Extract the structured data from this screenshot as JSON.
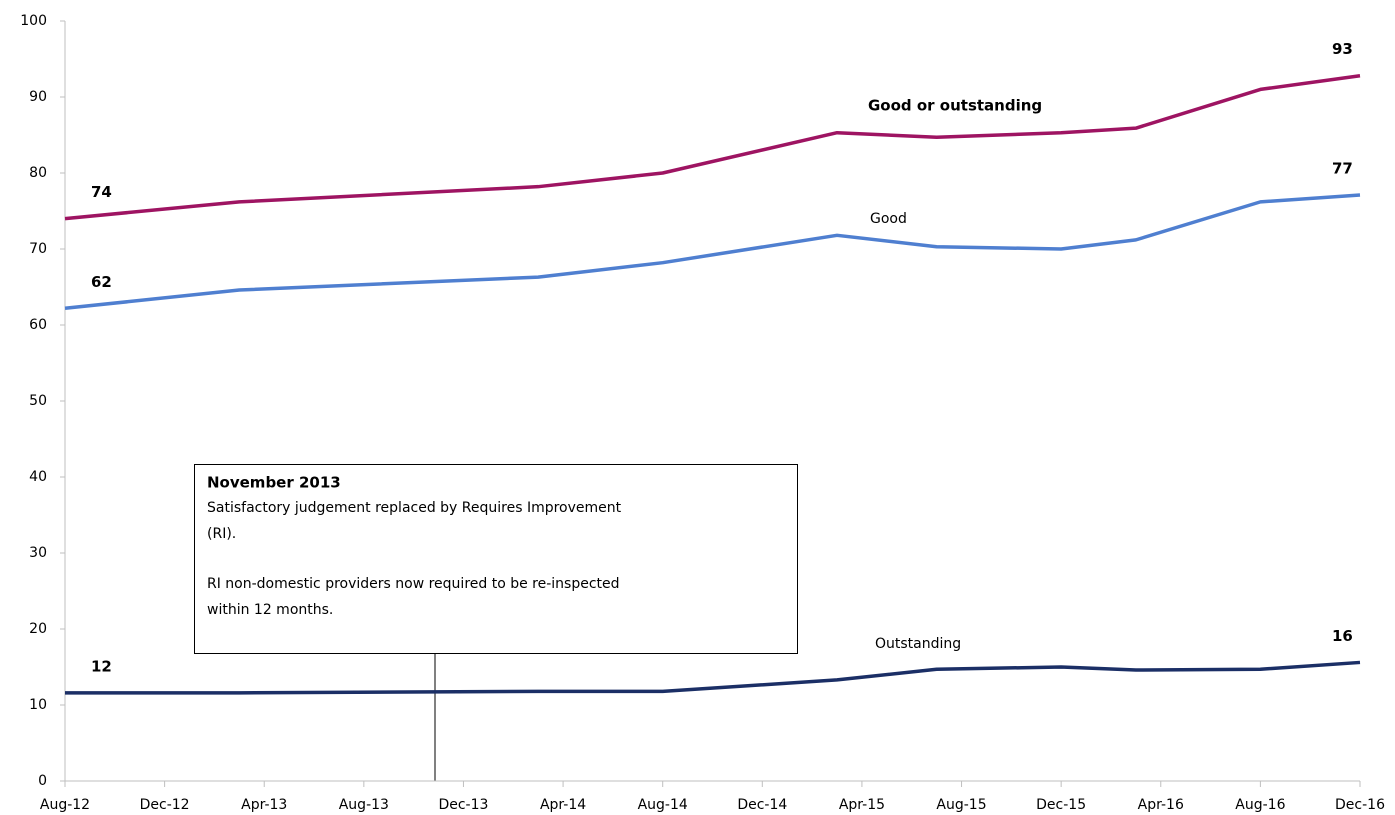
{
  "chart_data": {
    "type": "line",
    "x": [
      "Aug-12",
      "Mar-13",
      "Mar-14",
      "Aug-14",
      "Mar-15",
      "Jul-15",
      "Dec-15",
      "Mar-16",
      "Aug-16",
      "Dec-16"
    ],
    "xlim": [
      "Aug-12",
      "Dec-16"
    ],
    "xticks": [
      "Aug-12",
      "Dec-12",
      "Apr-13",
      "Aug-13",
      "Dec-13",
      "Apr-14",
      "Aug-14",
      "Dec-14",
      "Apr-15",
      "Aug-15",
      "Dec-15",
      "Apr-16",
      "Aug-16",
      "Dec-16"
    ],
    "ylim": [
      0,
      100
    ],
    "yticks": [
      0,
      10,
      20,
      30,
      40,
      50,
      60,
      70,
      80,
      90,
      100
    ],
    "series": [
      {
        "name": "Good or outstanding",
        "color": "#9e1462",
        "values": [
          74,
          76.2,
          78.2,
          80,
          85.3,
          84.7,
          85.3,
          85.9,
          91,
          92.8
        ],
        "value_labels": [
          "74",
          null,
          null,
          null,
          null,
          null,
          null,
          null,
          null,
          "93"
        ]
      },
      {
        "name": "Good",
        "color": "#4f7fd0",
        "values": [
          62.2,
          64.6,
          66.3,
          68.2,
          71.8,
          70.3,
          70,
          71.2,
          76.2,
          77.1
        ],
        "value_labels": [
          "62",
          null,
          null,
          null,
          null,
          null,
          null,
          null,
          null,
          "77"
        ]
      },
      {
        "name": "Outstanding",
        "color": "#1b2f66",
        "values": [
          11.6,
          11.6,
          11.8,
          11.8,
          13.3,
          14.7,
          15,
          14.6,
          14.7,
          15.6
        ],
        "value_labels": [
          "12",
          null,
          null,
          null,
          null,
          null,
          null,
          null,
          null,
          "16"
        ]
      }
    ],
    "annotation": {
      "title": "November 2013",
      "paragraphs": [
        [
          "Satisfactory judgement replaced by Requires Improvement",
          "(RI)."
        ],
        [
          "RI non-domestic providers now required to be re-inspected",
          "within 12 months."
        ]
      ]
    }
  }
}
